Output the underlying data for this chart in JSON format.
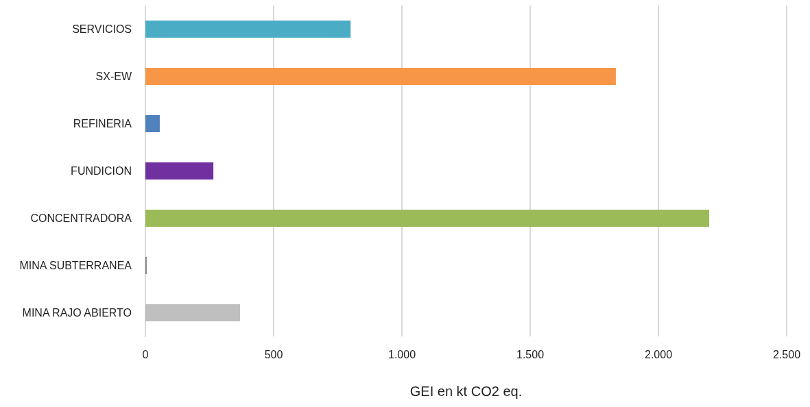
{
  "chart_data": {
    "type": "bar",
    "orientation": "horizontal",
    "xlabel": "GEI en kt CO2 eq.",
    "categories": [
      "SERVICIOS",
      "SX-EW",
      "REFINERIA",
      "FUNDICION",
      "CONCENTRADORA",
      "MINA SUBTERRANEA",
      "MINA RAJO ABIERTO"
    ],
    "values": [
      800,
      1834,
      56,
      265,
      2198,
      5,
      369
    ],
    "colors": [
      "#4bacc6",
      "#f79646",
      "#4f81bd",
      "#7030a0",
      "#9bbb59",
      "#7f7f7f",
      "#bfbfbf"
    ],
    "xlim": [
      0,
      2500
    ],
    "xticks": [
      0,
      500,
      {
        "value": 1000,
        "label": "1.000"
      },
      {
        "value": 1500,
        "label": "1.500"
      },
      {
        "value": 2000,
        "label": "2.000"
      },
      {
        "value": 2500,
        "label": "2.500"
      }
    ],
    "grid": "x"
  }
}
